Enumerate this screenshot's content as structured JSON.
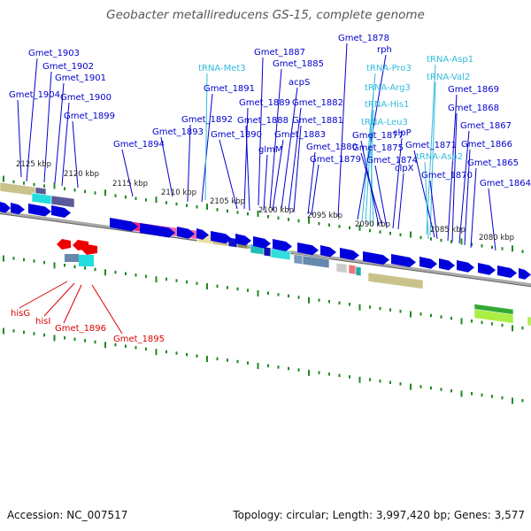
{
  "title": "Geobacter metallireducens GS-15, complete genome",
  "footer": {
    "accession": "Accession: NC_007517",
    "topology": "Topology: circular; Length: 3,997,420 bp; Genes: 3,577"
  },
  "colors": {
    "gene_label": "#0000cc",
    "rna_label": "#33bbdd",
    "reverse_gene_label": "#dd0000",
    "forward_arrow": "#0000dd",
    "reverse_arrow": "#ee0000",
    "tick": "#228822",
    "backbone": "#999999"
  },
  "scale_labels": [
    "2125 kbp",
    "2120 kbp",
    "2115 kbp",
    "2110 kbp",
    "2105 kbp",
    "2100 kbp",
    "2095 kbp",
    "2090 kbp",
    "2085 kbp",
    "2080 kbp"
  ],
  "forward_labels": [
    {
      "text": "Gmet_1903",
      "type": "gene"
    },
    {
      "text": "Gmet_1902",
      "type": "gene"
    },
    {
      "text": "Gmet_1901",
      "type": "gene"
    },
    {
      "text": "Gmet_1904",
      "type": "gene"
    },
    {
      "text": "Gmet_1900",
      "type": "gene"
    },
    {
      "text": "Gmet_1899",
      "type": "gene"
    },
    {
      "text": "Gmet_1894",
      "type": "gene"
    },
    {
      "text": "Gmet_1893",
      "type": "gene"
    },
    {
      "text": "Gmet_1892",
      "type": "gene"
    },
    {
      "text": "Gmet_1891",
      "type": "gene"
    },
    {
      "text": "tRNA-Met3",
      "type": "rna"
    },
    {
      "text": "Gmet_1887",
      "type": "gene"
    },
    {
      "text": "Gmet_1885",
      "type": "gene"
    },
    {
      "text": "Gmet_1889",
      "type": "gene"
    },
    {
      "text": "Gmet_1888",
      "type": "gene"
    },
    {
      "text": "Gmet_1890",
      "type": "gene"
    },
    {
      "text": "acpS",
      "type": "gene"
    },
    {
      "text": "Gmet_1882",
      "type": "gene"
    },
    {
      "text": "Gmet_1881",
      "type": "gene"
    },
    {
      "text": "glmM",
      "type": "gene"
    },
    {
      "text": "Gmet_1883",
      "type": "gene"
    },
    {
      "text": "Gmet_1880",
      "type": "gene"
    },
    {
      "text": "Gmet_1879",
      "type": "gene"
    },
    {
      "text": "Gmet_1878",
      "type": "gene"
    },
    {
      "text": "rph",
      "type": "gene"
    },
    {
      "text": "tRNA-Pro3",
      "type": "rna"
    },
    {
      "text": "tRNA-Arg3",
      "type": "rna"
    },
    {
      "text": "tRNA-His1",
      "type": "rna"
    },
    {
      "text": "tRNA-Leu3",
      "type": "rna"
    },
    {
      "text": "Gmet_1877",
      "type": "gene"
    },
    {
      "text": "Gmet_1875",
      "type": "gene"
    },
    {
      "text": "Gmet_1874",
      "type": "gene"
    },
    {
      "text": "clpP",
      "type": "gene"
    },
    {
      "text": "clpX",
      "type": "gene"
    },
    {
      "text": "tRNA-Asp1",
      "type": "rna"
    },
    {
      "text": "tRNA-Val2",
      "type": "rna"
    },
    {
      "text": "Gmet_1871",
      "type": "gene"
    },
    {
      "text": "tRNA-Asp2",
      "type": "rna"
    },
    {
      "text": "Gmet_1870",
      "type": "gene"
    },
    {
      "text": "Gmet_1869",
      "type": "gene"
    },
    {
      "text": "Gmet_1868",
      "type": "gene"
    },
    {
      "text": "Gmet_1867",
      "type": "gene"
    },
    {
      "text": "Gmet_1866",
      "type": "gene"
    },
    {
      "text": "Gmet_1865",
      "type": "gene"
    },
    {
      "text": "Gmet_1864",
      "type": "gene"
    }
  ],
  "reverse_labels": [
    {
      "text": "hisG",
      "type": "gene"
    },
    {
      "text": "hisI",
      "type": "gene"
    },
    {
      "text": "Gmet_1896",
      "type": "gene"
    },
    {
      "text": "Gmet_1895",
      "type": "gene"
    }
  ]
}
